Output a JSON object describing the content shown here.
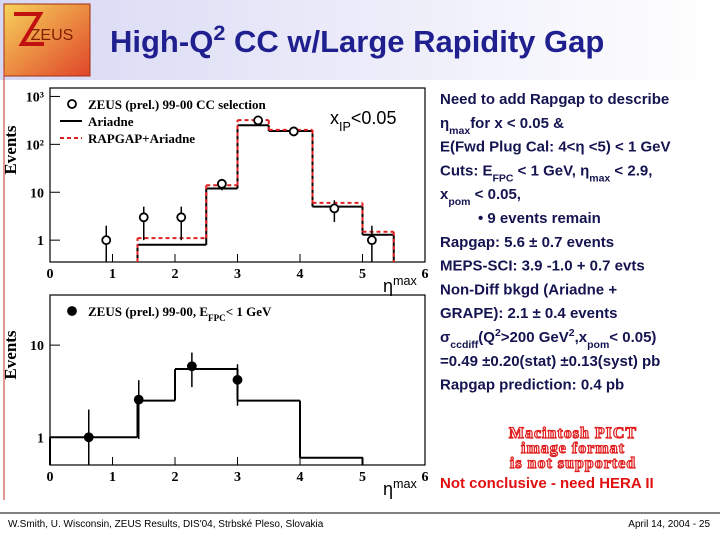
{
  "logo": "ZEUS",
  "title": [
    {
      "t": "High-Q"
    },
    {
      "sup": "2"
    },
    {
      "t": " CC w/Large Rapidity Gap"
    }
  ],
  "chart_data": [
    {
      "type": "histogram",
      "log": true,
      "xlim": [
        0,
        6
      ],
      "xticks": [
        0,
        1,
        2,
        3,
        4,
        5,
        6
      ],
      "ylim": [
        0.35,
        1500
      ],
      "yticks": [
        1,
        10,
        {
          "value": 100,
          "label": "10²"
        },
        {
          "value": 1000,
          "label": "10³"
        }
      ],
      "x_label": [
        {
          "t": "η"
        },
        {
          "sup": "max"
        }
      ],
      "y_label": "Events",
      "annotation": [
        {
          "t": "x"
        },
        {
          "sub": "IP"
        },
        {
          "t": "<0.05"
        }
      ],
      "points": {
        "name": "ZEUS (prel.) 99-00 CC selection",
        "marker": "open",
        "color": "#000000",
        "x": [
          0.9,
          1.5,
          2.1,
          2.75,
          3.33,
          3.9,
          4.55,
          5.15
        ],
        "values": [
          1,
          3,
          3,
          15,
          316,
          186,
          4.6,
          1
        ],
        "errors": [
          1,
          2,
          2,
          4,
          18,
          14,
          2.2,
          1
        ]
      },
      "series": [
        {
          "name": "Ariadne",
          "color": "#000000",
          "style": "solid",
          "bins": [
            1.4,
            2.5,
            3,
            3.5,
            4.2,
            5,
            5.5
          ],
          "values": [
            0.8,
            12,
            250,
            190,
            5,
            1.3
          ]
        },
        {
          "name": "RAPGAP+Ariadne",
          "color": "#e02020",
          "style": "dashed",
          "bins": [
            1.4,
            2.5,
            3,
            3.5,
            4.2,
            5,
            5.5
          ],
          "values": [
            1.1,
            14,
            320,
            200,
            6,
            1.5
          ]
        }
      ]
    },
    {
      "type": "histogram",
      "log": true,
      "xlim": [
        0,
        6
      ],
      "xticks": [
        0,
        1,
        2,
        3,
        4,
        5,
        6
      ],
      "ylim": [
        0.5,
        35
      ],
      "yticks": [
        1,
        10
      ],
      "x_label": [
        {
          "t": "η"
        },
        {
          "sup": "max"
        }
      ],
      "y_label": "Events",
      "points": {
        "name": [
          {
            "t": "ZEUS (prel.) 99-00, E"
          },
          {
            "sub": "FPC"
          },
          {
            "t": "< 1 GeV"
          }
        ],
        "marker": "filled",
        "color": "#000000",
        "x": [
          0.62,
          1.42,
          2.27,
          3.0
        ],
        "values": [
          1,
          2.56,
          5.9,
          4.2
        ],
        "errors": [
          1,
          1.6,
          2.4,
          2.0
        ]
      },
      "series": [
        {
          "color": "#000000",
          "style": "solid",
          "bins": [
            0,
            1.4,
            2,
            3,
            4,
            5
          ],
          "values": [
            1,
            2.5,
            5.5,
            2.5,
            0.6
          ]
        }
      ]
    }
  ],
  "notes": [
    [
      {
        "t": "Need to add Rapgap to describe"
      }
    ],
    [
      {
        "t": "η"
      },
      {
        "sub": "max"
      },
      {
        "t": "for x < 0.05 &"
      }
    ],
    [
      {
        "t": "E(Fwd Plug Cal: 4<η <5) < 1 GeV"
      }
    ],
    [
      {
        "t": "Cuts: E"
      },
      {
        "sub": "FPC"
      },
      {
        "t": " < 1 GeV, η"
      },
      {
        "sub": "max"
      },
      {
        "t": " < 2.9,"
      }
    ],
    [
      {
        "t": "x"
      },
      {
        "sub": "pom"
      },
      {
        "t": " < 0.05,"
      }
    ],
    [
      {
        "t": "• 9 events remain"
      }
    ],
    [
      {
        "t": "Rapgap: 5.6 ± 0.7 events"
      }
    ],
    [
      {
        "t": "MEPS-SCI: 3.9 -1.0 + 0.7 evts"
      }
    ],
    [
      {
        "t": "Non-Diff bkgd (Ariadne +"
      }
    ],
    [
      {
        "t": "GRAPE): 2.1 ± 0.4 events"
      }
    ],
    [
      {
        "t": "σ"
      },
      {
        "sub": "ccdiff"
      },
      {
        "t": "(Q"
      },
      {
        "sup": "2"
      },
      {
        "t": ">200 GeV"
      },
      {
        "sup": "2"
      },
      {
        "t": ",x"
      },
      {
        "sub": "pom"
      },
      {
        "t": "< 0.05)"
      }
    ],
    [
      {
        "t": "=0.49 ±0.20(stat) ±0.13(syst) pb"
      }
    ],
    [
      {
        "t": "Rapgap prediction: 0.4 pb"
      }
    ]
  ],
  "pict": [
    "Macintosh PICT",
    "image format",
    "is not supported"
  ],
  "conclusion": "Not conclusive - need HERA II",
  "footer": {
    "left": "W.Smith, U. Wisconsin, ZEUS Results, DIS'04, Strbské Pleso, Slovakia",
    "right": "April 14, 2004 - 25"
  }
}
